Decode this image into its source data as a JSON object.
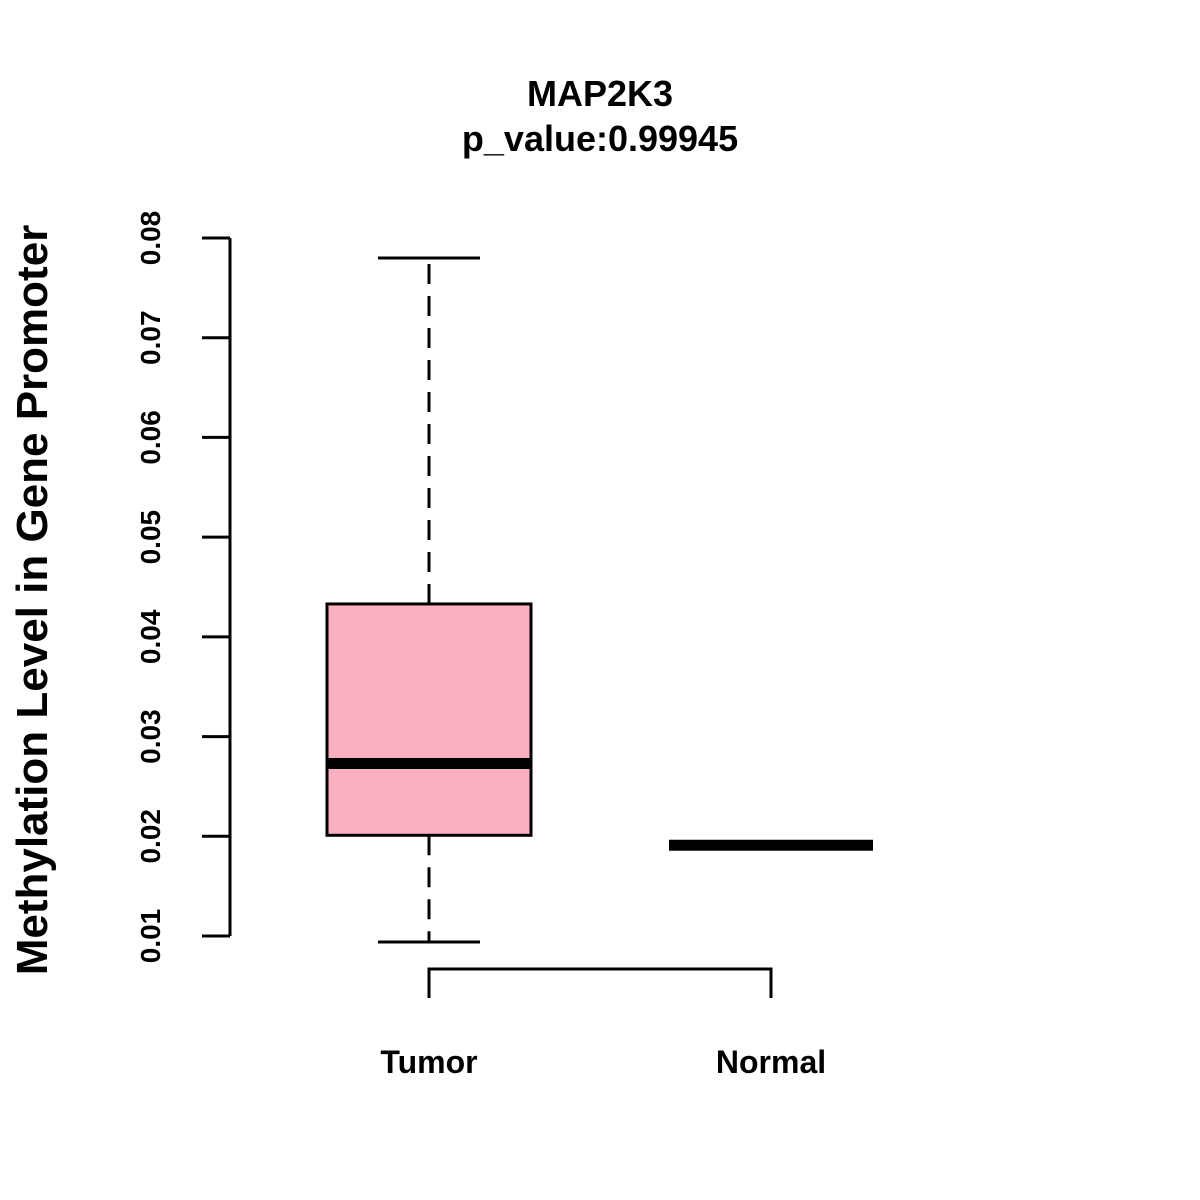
{
  "chart_data": {
    "type": "box",
    "title": "MAP2K3",
    "subtitle": "p_value:0.99945",
    "xlabel": "",
    "ylabel": "Methylation Level in Gene Promoter",
    "ylim": [
      0.01,
      0.08
    ],
    "y_ticks": [
      0.01,
      0.02,
      0.03,
      0.04,
      0.05,
      0.06,
      0.07,
      0.08
    ],
    "y_tick_labels": [
      "0.01",
      "0.02",
      "0.03",
      "0.04",
      "0.05",
      "0.06",
      "0.07",
      "0.08"
    ],
    "grid": false,
    "categories": [
      "Tumor",
      "Normal"
    ],
    "boxes": [
      {
        "name": "Tumor",
        "whisker_low": 0.0094,
        "q1": 0.0201,
        "median": 0.0273,
        "q3": 0.0433,
        "whisker_high": 0.078,
        "color": "#fbb0c2"
      },
      {
        "name": "Normal",
        "whisker_low": 0.0191,
        "q1": 0.0191,
        "median": 0.0191,
        "q3": 0.0191,
        "whisker_high": 0.0191,
        "color": "#fbb0c2"
      }
    ],
    "comparison_bracket": [
      "Tumor",
      "Normal"
    ]
  },
  "colors": {
    "box_fill": "#fbb0c2",
    "line": "#000000",
    "background": "#ffffff"
  }
}
